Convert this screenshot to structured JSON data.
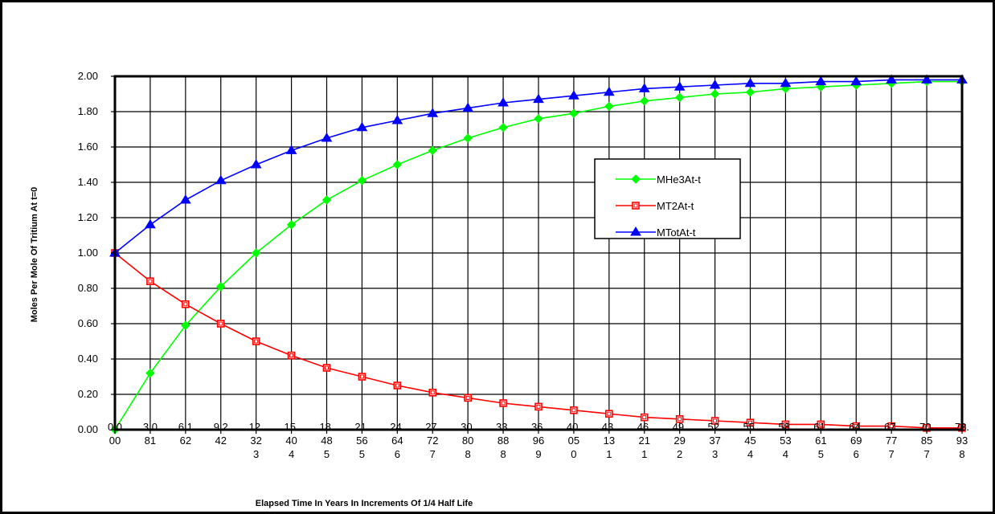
{
  "chart_data": {
    "type": "line",
    "title": "",
    "xlabel": "Elapsed Time In Years In Increments Of 1/4 Half Life",
    "ylabel": "Moles Per Mole Of Tritium At t=0",
    "ylim": [
      0,
      2
    ],
    "y_ticks": [
      "0.00",
      "0.20",
      "0.40",
      "0.60",
      "0.80",
      "1.00",
      "1.20",
      "1.40",
      "1.60",
      "1.80",
      "2.00"
    ],
    "x_tick_labels": [
      [
        "0.0",
        "00"
      ],
      [
        "3.0",
        "81"
      ],
      [
        "6.1",
        "62"
      ],
      [
        "9.2",
        "42"
      ],
      [
        "12.",
        "32",
        "3"
      ],
      [
        "15.",
        "40",
        "4"
      ],
      [
        "18.",
        "48",
        "5"
      ],
      [
        "21.",
        "56",
        "5"
      ],
      [
        "24.",
        "64",
        "6"
      ],
      [
        "27.",
        "72",
        "7"
      ],
      [
        "30.",
        "80",
        "8"
      ],
      [
        "33.",
        "88",
        "8"
      ],
      [
        "36.",
        "96",
        "9"
      ],
      [
        "40.",
        "05",
        "0"
      ],
      [
        "43.",
        "13",
        "1"
      ],
      [
        "46.",
        "21",
        "1"
      ],
      [
        "49.",
        "29",
        "2"
      ],
      [
        "52.",
        "37",
        "3"
      ],
      [
        "55.",
        "45",
        "4"
      ],
      [
        "58.",
        "53",
        "4"
      ],
      [
        "61.",
        "61",
        "5"
      ],
      [
        "64.",
        "69",
        "6"
      ],
      [
        "67.",
        "77",
        "7"
      ],
      [
        "70.",
        "85",
        "7"
      ],
      [
        "73.",
        "93",
        "8"
      ]
    ],
    "grid": true,
    "legend_position": "center-right",
    "series": [
      {
        "name": "MHe3At-t",
        "color": "#00ff00",
        "marker": "diamond",
        "values": [
          0.0,
          0.32,
          0.59,
          0.81,
          1.0,
          1.16,
          1.3,
          1.41,
          1.5,
          1.58,
          1.65,
          1.71,
          1.76,
          1.79,
          1.83,
          1.86,
          1.88,
          1.9,
          1.91,
          1.93,
          1.94,
          1.95,
          1.96,
          1.97,
          1.97
        ]
      },
      {
        "name": "MT2At-t",
        "color": "#ff0000",
        "marker": "square",
        "values": [
          1.0,
          0.84,
          0.71,
          0.6,
          0.5,
          0.42,
          0.35,
          0.3,
          0.25,
          0.21,
          0.18,
          0.15,
          0.13,
          0.11,
          0.09,
          0.07,
          0.06,
          0.05,
          0.04,
          0.03,
          0.03,
          0.02,
          0.02,
          0.01,
          0.01
        ]
      },
      {
        "name": "MTotAt-t",
        "color": "#0000ff",
        "marker": "triangle",
        "values": [
          1.0,
          1.16,
          1.3,
          1.41,
          1.5,
          1.58,
          1.65,
          1.71,
          1.75,
          1.79,
          1.82,
          1.85,
          1.87,
          1.89,
          1.91,
          1.93,
          1.94,
          1.95,
          1.96,
          1.96,
          1.97,
          1.97,
          1.98,
          1.98,
          1.98
        ]
      }
    ]
  }
}
